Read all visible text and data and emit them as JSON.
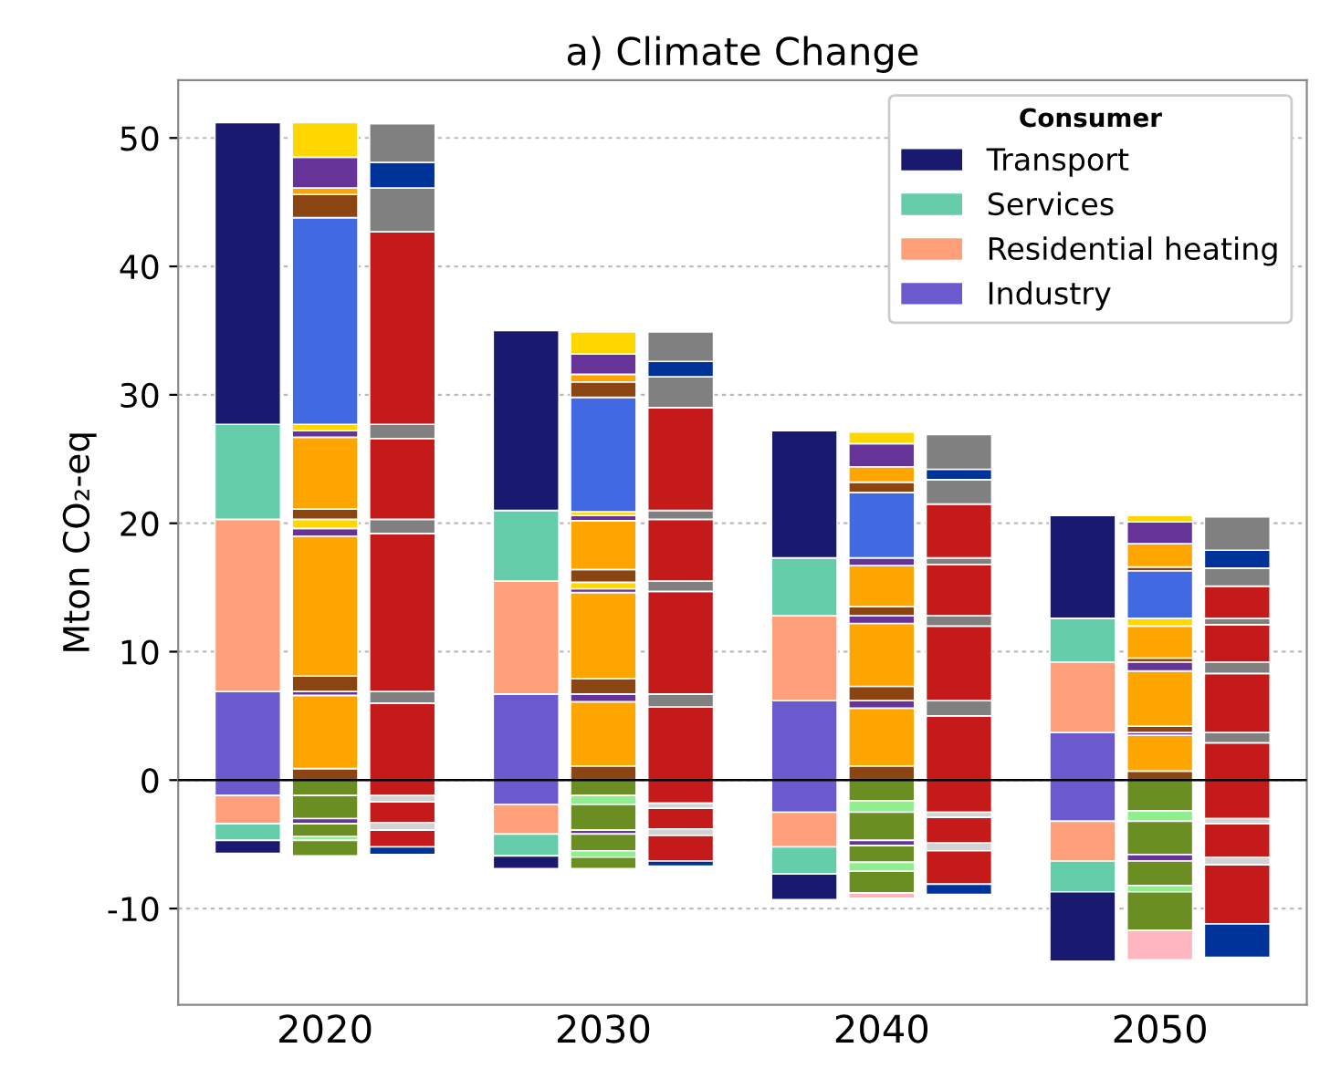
{
  "chart_data": {
    "type": "bar",
    "stacked": true,
    "title": "a) Climate Change",
    "ylabel": "Mton CO₂-eq",
    "legend_title": "Consumer",
    "legend": "top right",
    "grid": "y",
    "categories": [
      null,
      "2020",
      null,
      null,
      "2030",
      null,
      null,
      "2040",
      null,
      null,
      "2050",
      null
    ],
    "ylim": [
      -17.5,
      54.5
    ],
    "yticks": [
      -10,
      0,
      10,
      20,
      30,
      40,
      50
    ],
    "ref_lines": [
      {
        "axis": "y",
        "value": 0,
        "color": "#000000"
      }
    ],
    "series": [
      {
        "name": "Industry",
        "color": "#6a5acd",
        "values": [
          6.9,
          null,
          null,
          6.7,
          null,
          null,
          6.2,
          null,
          null,
          3.7,
          null,
          null
        ]
      },
      {
        "name": "Residential heating",
        "color": "#ffa07a",
        "values": [
          13.4,
          null,
          null,
          8.8,
          null,
          null,
          6.6,
          null,
          null,
          5.5,
          null,
          null
        ]
      },
      {
        "name": "Services",
        "color": "#66cdaa",
        "values": [
          7.4,
          null,
          null,
          5.5,
          null,
          null,
          4.5,
          null,
          null,
          3.4,
          null,
          null
        ]
      },
      {
        "name": "Transport",
        "color": "#191970",
        "values": [
          23.5,
          null,
          null,
          14.0,
          null,
          null,
          9.9,
          null,
          null,
          8.0,
          null,
          null
        ]
      },
      {
        "color": "#6a5acd",
        "values": [
          -1.2,
          null,
          null,
          -1.9,
          null,
          null,
          -2.5,
          null,
          null,
          -3.2,
          null,
          null
        ]
      },
      {
        "color": "#ffa07a",
        "values": [
          -2.2,
          null,
          null,
          -2.3,
          null,
          null,
          -2.7,
          null,
          null,
          -3.1,
          null,
          null
        ]
      },
      {
        "color": "#66cdaa",
        "values": [
          -1.3,
          null,
          null,
          -1.7,
          null,
          null,
          -2.1,
          null,
          null,
          -2.4,
          null,
          null
        ]
      },
      {
        "color": "#191970",
        "values": [
          -1.0,
          null,
          null,
          -1.0,
          null,
          null,
          -2.0,
          null,
          null,
          -5.4,
          null,
          null
        ]
      },
      {
        "color": "#8b4513",
        "values": [
          null,
          0.9,
          null,
          null,
          1.1,
          null,
          null,
          1.1,
          null,
          null,
          0.7,
          null
        ]
      },
      {
        "color": "#ffa500",
        "values": [
          null,
          5.7,
          null,
          null,
          5.0,
          null,
          null,
          4.5,
          null,
          null,
          2.8,
          null
        ]
      },
      {
        "color": "#663399",
        "values": [
          null,
          0.3,
          null,
          null,
          0.6,
          null,
          null,
          0.6,
          null,
          null,
          0.2,
          null
        ]
      },
      {
        "color": "#8b4513",
        "values": [
          null,
          1.2,
          null,
          null,
          1.2,
          null,
          null,
          1.1,
          null,
          null,
          0.5,
          null
        ]
      },
      {
        "color": "#ffa500",
        "values": [
          null,
          10.9,
          null,
          null,
          6.7,
          null,
          null,
          4.9,
          null,
          null,
          4.3,
          null
        ]
      },
      {
        "color": "#663399",
        "values": [
          null,
          0.6,
          null,
          null,
          0.3,
          null,
          null,
          0.6,
          null,
          null,
          0.7,
          null
        ]
      },
      {
        "color": "#ffd700",
        "values": [
          null,
          0.7,
          null,
          null,
          0.5,
          null,
          null,
          null,
          null,
          null,
          null,
          null
        ]
      },
      {
        "color": "#8b4513",
        "values": [
          null,
          0.8,
          null,
          null,
          1.0,
          null,
          null,
          0.7,
          null,
          null,
          0.3,
          null
        ]
      },
      {
        "color": "#ffa500",
        "values": [
          null,
          5.6,
          null,
          null,
          3.8,
          null,
          null,
          3.2,
          null,
          null,
          2.5,
          null
        ]
      },
      {
        "color": "#663399",
        "values": [
          null,
          0.5,
          null,
          null,
          0.4,
          null,
          null,
          0.6,
          null,
          null,
          null,
          null
        ]
      },
      {
        "color": "#ffd700",
        "values": [
          null,
          0.5,
          null,
          null,
          0.3,
          null,
          null,
          null,
          null,
          null,
          0.6,
          null
        ]
      },
      {
        "color": "#4169e1",
        "values": [
          null,
          16.1,
          null,
          null,
          8.9,
          null,
          null,
          5.1,
          null,
          null,
          3.7,
          null
        ]
      },
      {
        "color": "#8b4513",
        "values": [
          null,
          1.8,
          null,
          null,
          1.2,
          null,
          null,
          0.8,
          null,
          null,
          0.3,
          null
        ]
      },
      {
        "color": "#ffa500",
        "values": [
          null,
          0.5,
          null,
          null,
          0.6,
          null,
          null,
          1.2,
          null,
          null,
          1.8,
          null
        ]
      },
      {
        "color": "#663399",
        "values": [
          null,
          2.4,
          null,
          null,
          1.6,
          null,
          null,
          1.8,
          null,
          null,
          1.7,
          null
        ]
      },
      {
        "color": "#ffd700",
        "values": [
          null,
          2.7,
          null,
          null,
          1.7,
          null,
          null,
          0.9,
          null,
          null,
          0.5,
          null
        ]
      },
      {
        "color": "#6b8e23",
        "values": [
          null,
          -1.2,
          null,
          null,
          -1.2,
          null,
          null,
          -1.6,
          null,
          null,
          -2.4,
          null
        ]
      },
      {
        "color": "#90ee90",
        "values": [
          null,
          null,
          null,
          null,
          -0.7,
          null,
          null,
          -0.9,
          null,
          null,
          -0.8,
          null
        ]
      },
      {
        "color": "#6b8e23",
        "values": [
          null,
          -1.8,
          null,
          null,
          -2.0,
          null,
          null,
          -2.2,
          null,
          null,
          -2.6,
          null
        ]
      },
      {
        "color": "#663399",
        "values": [
          null,
          -0.4,
          null,
          null,
          -0.3,
          null,
          null,
          -0.4,
          null,
          null,
          -0.5,
          null
        ]
      },
      {
        "color": "#6b8e23",
        "values": [
          null,
          -1.0,
          null,
          null,
          -1.3,
          null,
          null,
          -1.3,
          null,
          null,
          -1.9,
          null
        ]
      },
      {
        "color": "#90ee90",
        "values": [
          null,
          -0.3,
          null,
          null,
          -0.5,
          null,
          null,
          -0.7,
          null,
          null,
          -0.5,
          null
        ]
      },
      {
        "color": "#6b8e23",
        "values": [
          null,
          -1.2,
          null,
          null,
          -0.9,
          null,
          null,
          -1.7,
          null,
          null,
          -3.0,
          null
        ]
      },
      {
        "color": "#ffb6c1",
        "values": [
          null,
          null,
          null,
          null,
          null,
          null,
          null,
          -0.4,
          null,
          null,
          -2.3,
          null
        ]
      },
      {
        "color": "#c41a1a",
        "values": [
          null,
          null,
          6.0,
          null,
          null,
          5.7,
          null,
          null,
          5.0,
          null,
          null,
          2.9
        ]
      },
      {
        "color": "#808080",
        "values": [
          null,
          null,
          0.9,
          null,
          null,
          1.0,
          null,
          null,
          1.2,
          null,
          null,
          0.8
        ]
      },
      {
        "color": "#c41a1a",
        "values": [
          null,
          null,
          12.3,
          null,
          null,
          8.0,
          null,
          null,
          5.8,
          null,
          null,
          4.6
        ]
      },
      {
        "color": "#808080",
        "values": [
          null,
          null,
          1.1,
          null,
          null,
          0.8,
          null,
          null,
          0.8,
          null,
          null,
          0.9
        ]
      },
      {
        "color": "#c41a1a",
        "values": [
          null,
          null,
          6.3,
          null,
          null,
          4.8,
          null,
          null,
          4.0,
          null,
          null,
          2.9
        ]
      },
      {
        "color": "#808080",
        "values": [
          null,
          null,
          1.1,
          null,
          null,
          0.7,
          null,
          null,
          0.5,
          null,
          null,
          0.5
        ]
      },
      {
        "color": "#c41a1a",
        "values": [
          null,
          null,
          15.0,
          null,
          null,
          8.0,
          null,
          null,
          4.2,
          null,
          null,
          2.5
        ]
      },
      {
        "color": "#808080",
        "values": [
          null,
          null,
          3.4,
          null,
          null,
          2.4,
          null,
          null,
          1.9,
          null,
          null,
          1.4
        ]
      },
      {
        "color": "#003399",
        "values": [
          null,
          null,
          2.0,
          null,
          null,
          1.2,
          null,
          null,
          0.8,
          null,
          null,
          1.4
        ]
      },
      {
        "color": "#808080",
        "values": [
          null,
          null,
          3.0,
          null,
          null,
          2.3,
          null,
          null,
          2.7,
          null,
          null,
          2.6
        ]
      },
      {
        "color": "#c41a1a",
        "values": [
          null,
          null,
          -1.2,
          null,
          null,
          -1.8,
          null,
          null,
          -2.5,
          null,
          null,
          -3.0
        ]
      },
      {
        "color": "#d3d3d3",
        "values": [
          null,
          null,
          -0.5,
          null,
          null,
          -0.4,
          null,
          null,
          -0.4,
          null,
          null,
          -0.4
        ]
      },
      {
        "color": "#c41a1a",
        "values": [
          null,
          null,
          -1.6,
          null,
          null,
          -1.6,
          null,
          null,
          -2.0,
          null,
          null,
          -2.6
        ]
      },
      {
        "color": "#d3d3d3",
        "values": [
          null,
          null,
          -0.6,
          null,
          null,
          -0.5,
          null,
          null,
          -0.6,
          null,
          null,
          -0.6
        ]
      },
      {
        "color": "#c41a1a",
        "values": [
          null,
          null,
          -1.3,
          null,
          null,
          -2.0,
          null,
          null,
          -2.6,
          null,
          null,
          -4.6
        ]
      },
      {
        "color": "#003399",
        "values": [
          null,
          null,
          -0.6,
          null,
          null,
          -0.4,
          null,
          null,
          -0.8,
          null,
          null,
          -2.6
        ]
      }
    ]
  }
}
